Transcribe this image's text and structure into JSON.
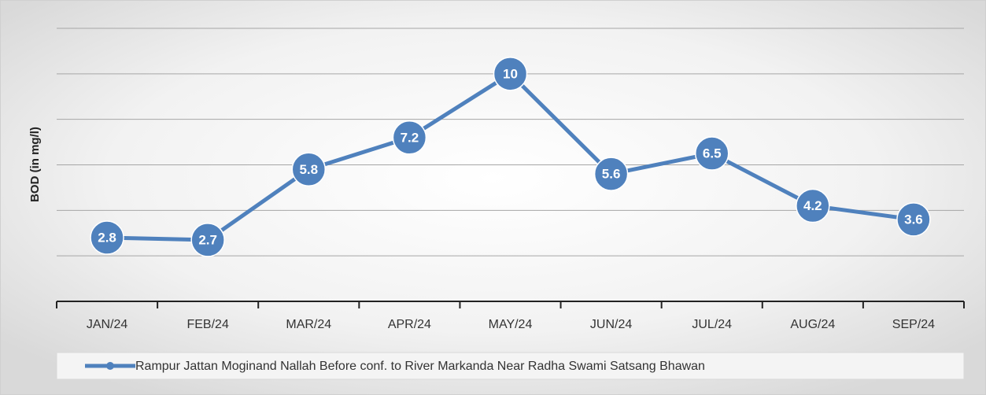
{
  "chart_data": {
    "type": "line",
    "y_label": "BOD (in mg/l)",
    "categories": [
      "JAN/24",
      "FEB/24",
      "MAR/24",
      "APR/24",
      "MAY/24",
      "JUN/24",
      "JUL/24",
      "AUG/24",
      "SEP/24"
    ],
    "series": [
      {
        "name": "Rampur Jattan Moginand Nallah Before conf. to River Markanda Near Radha Swami Satsang Bhawan",
        "color": "#4f81bd",
        "values": [
          2.8,
          2.7,
          5.8,
          7.2,
          10,
          5.6,
          6.5,
          4.2,
          3.6
        ]
      }
    ],
    "ylim": [
      0,
      12
    ],
    "yticks": [
      0,
      2,
      4,
      6,
      8,
      10,
      12
    ],
    "grid": true,
    "legend": "bottom"
  }
}
